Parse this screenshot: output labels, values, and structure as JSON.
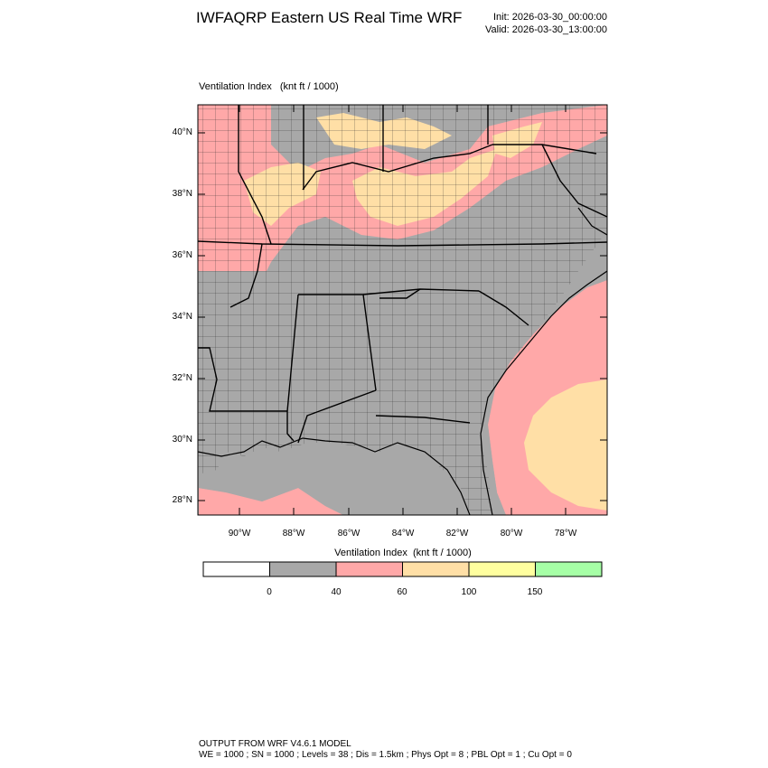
{
  "header": {
    "title": "IWFAQRP Eastern US Real Time WRF",
    "init": "Init: 2026-03-30_00:00:00",
    "valid": "Valid: 2026-03-30_13:00:00"
  },
  "panel": {
    "title": "Ventilation Index   (knt ft / 1000)"
  },
  "map": {
    "lat_labels": [
      "40°N",
      "38°N",
      "36°N",
      "34°N",
      "32°N",
      "30°N",
      "28°N"
    ],
    "lon_labels": [
      "90°W",
      "88°W",
      "86°W",
      "84°W",
      "82°W",
      "80°W",
      "78°W"
    ]
  },
  "colorbar": {
    "title": "Ventilation Index  (knt ft / 1000)",
    "boxes": [
      {
        "color": "#ffffff"
      },
      {
        "color": "#a8a8a8"
      },
      {
        "color": "#ffa8a8"
      },
      {
        "color": "#ffdfa6"
      },
      {
        "color": "#ffff9f"
      },
      {
        "color": "#a6ffa6"
      }
    ],
    "ticks": [
      "0",
      "40",
      "60",
      "100",
      "150"
    ]
  },
  "footer": {
    "line1": "OUTPUT FROM WRF V4.6.1 MODEL",
    "line2": "WE = 1000 ; SN = 1000 ; Levels = 38 ; Dis = 1.5km ; Phys Opt = 8 ; PBL Opt = 1 ; Cu Opt = 0"
  }
}
